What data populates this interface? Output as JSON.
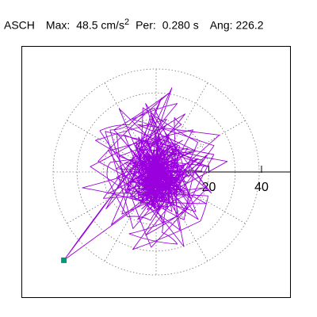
{
  "header": {
    "station": "ASCH",
    "max_label": "Max:",
    "max_value": "48.5 cm/s",
    "max_exp": "2",
    "per_label": "Per:",
    "per_value": "0.280 s",
    "ang_label": "Ang:",
    "ang_value": "226.2"
  },
  "colors": {
    "trace": "#9900dd",
    "marker": "#009977",
    "grid": "#777777",
    "axis": "#000000"
  },
  "chart_data": {
    "type": "scatter",
    "title": "",
    "xlabel": "",
    "ylabel": "",
    "polar_rings": [
      20,
      40
    ],
    "ring_step": 10,
    "radial_lines_deg": [
      0,
      30,
      60,
      90,
      120,
      150,
      180,
      210,
      240,
      270,
      300,
      330
    ],
    "tick_labels": [
      "20",
      "40"
    ],
    "xlim": [
      -48.5,
      48.5
    ],
    "ylim": [
      -48.5,
      48.5
    ],
    "grid": true,
    "marker_point": {
      "x": -35.0,
      "y": -33.5
    },
    "trace_description_points": [
      [
        0,
        0
      ],
      [
        3,
        8
      ],
      [
        -4,
        12
      ],
      [
        7,
        -6
      ],
      [
        -10,
        3
      ],
      [
        12,
        9
      ],
      [
        -6,
        -12
      ],
      [
        5,
        14
      ],
      [
        -14,
        6
      ],
      [
        9,
        -3
      ],
      [
        -3,
        -9
      ],
      [
        16,
        5
      ],
      [
        -11,
        -7
      ],
      [
        4,
        18
      ],
      [
        -8,
        10
      ],
      [
        13,
        -10
      ],
      [
        -2,
        22
      ],
      [
        6,
        -15
      ],
      [
        -15,
        -2
      ],
      [
        10,
        12
      ],
      [
        -5,
        4
      ],
      [
        20,
        2
      ],
      [
        -12,
        14
      ],
      [
        3,
        -20
      ],
      [
        -18,
        8
      ],
      [
        14,
        16
      ],
      [
        -7,
        -18
      ],
      [
        18,
        -6
      ],
      [
        -20,
        -10
      ],
      [
        8,
        26
      ],
      [
        -9,
        20
      ],
      [
        22,
        10
      ],
      [
        -4,
        -24
      ],
      [
        12,
        -14
      ],
      [
        -16,
        16
      ],
      [
        5,
        30
      ],
      [
        -22,
        4
      ],
      [
        16,
        -18
      ],
      [
        -6,
        12
      ],
      [
        27,
        4
      ],
      [
        -13,
        -16
      ],
      [
        2,
        28
      ],
      [
        -19,
        -14
      ],
      [
        11,
        22
      ],
      [
        -25,
        2
      ],
      [
        9,
        -22
      ],
      [
        -4,
        26
      ],
      [
        21,
        -8
      ],
      [
        -14,
        24
      ],
      [
        3,
        -14
      ],
      [
        -28,
        -6
      ],
      [
        15,
        8
      ],
      [
        -7,
        18
      ],
      [
        24,
        14
      ],
      [
        -17,
        -20
      ],
      [
        6,
        32
      ],
      [
        -10,
        -10
      ],
      [
        19,
        -12
      ],
      [
        -23,
        12
      ],
      [
        4,
        20
      ],
      [
        -35,
        -33.5
      ]
    ]
  }
}
